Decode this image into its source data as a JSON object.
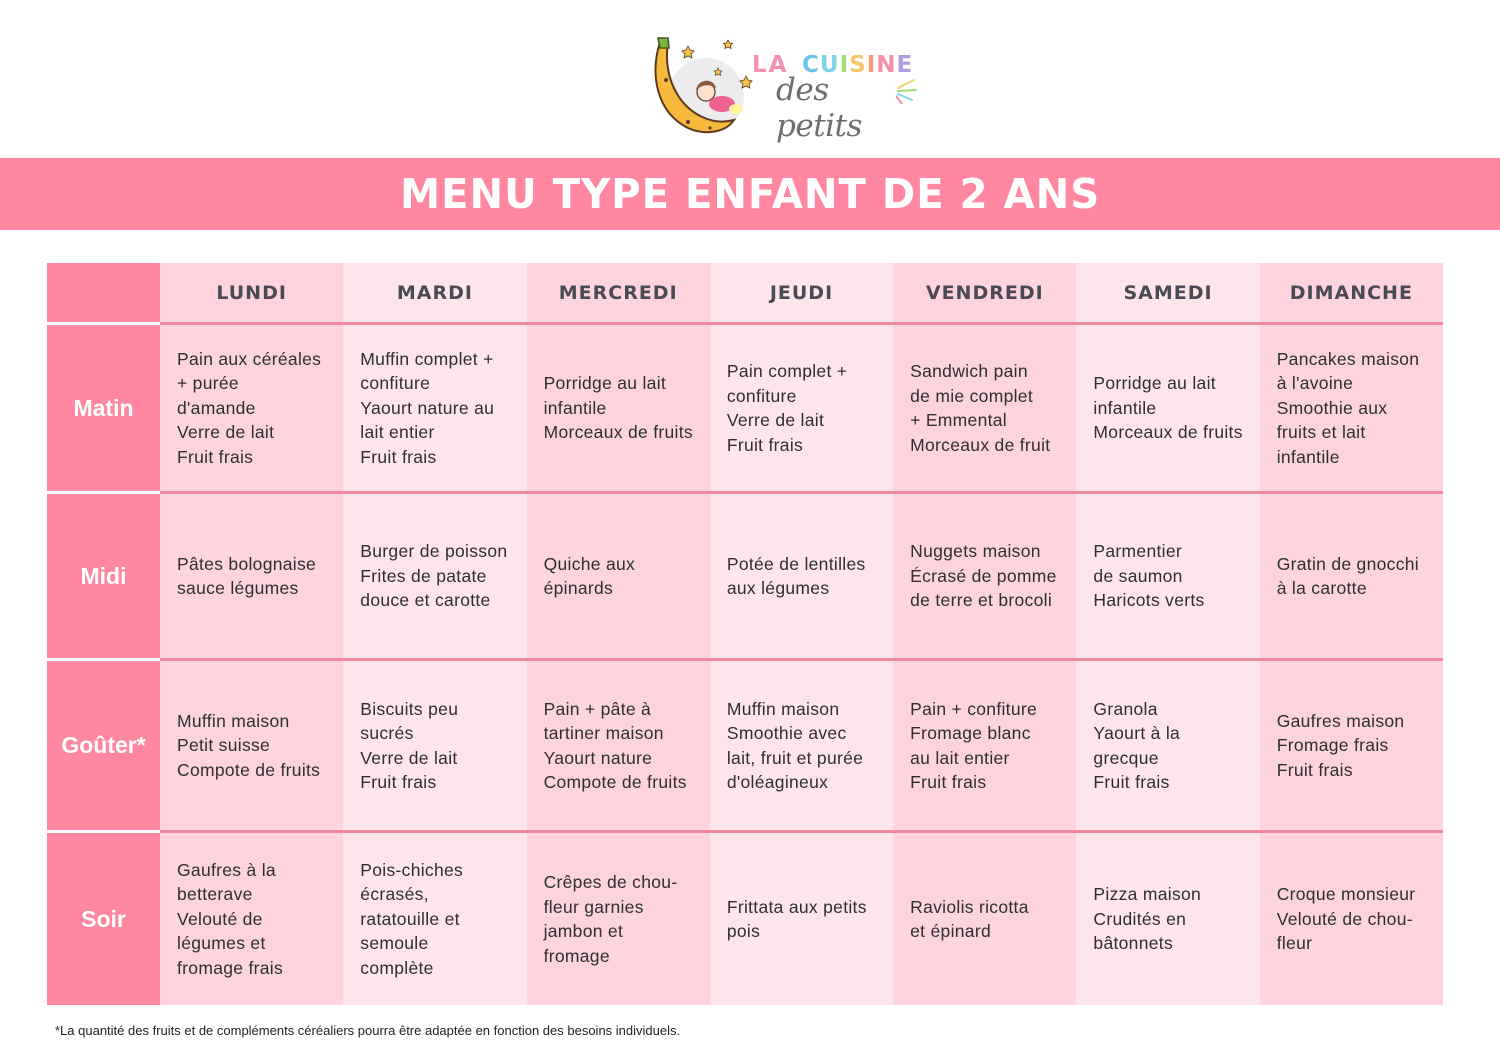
{
  "logo": {
    "la": "LA",
    "cuisine_letters": [
      "C",
      "U",
      "I",
      "S",
      "I",
      "N",
      "E"
    ],
    "cuisine_colors": [
      "#6cc3ea",
      "#7dd3e8",
      "#a5dc7a",
      "#f5c66b",
      "#f49c7a",
      "#f58fa8",
      "#b49ae0"
    ],
    "la_color": "#f590b4",
    "subtitle": "des petits"
  },
  "banner": {
    "title": "MENU TYPE ENFANT DE 2 ANS",
    "color": "#ff87a2"
  },
  "table": {
    "days": [
      "LUNDI",
      "MARDI",
      "MERCREDI",
      "JEUDI",
      "VENDREDI",
      "SAMEDI",
      "DIMANCHE"
    ],
    "meals": [
      {
        "label": "Matin",
        "cells": [
          [
            "Pain aux céréales",
            "+ purée",
            "d'amande",
            "Verre de lait",
            "Fruit frais"
          ],
          [
            "Muffin complet +",
            "confiture",
            "Yaourt nature au",
            "lait entier",
            "Fruit frais"
          ],
          [
            "Porridge au lait",
            "infantile",
            "Morceaux de fruits"
          ],
          [
            "Pain complet +",
            "confiture",
            "Verre de lait",
            "Fruit frais"
          ],
          [
            "Sandwich pain",
            "de mie complet",
            "+ Emmental",
            "Morceaux de fruit"
          ],
          [
            "Porridge au lait",
            "infantile",
            "Morceaux de fruits"
          ],
          [
            "Pancakes maison",
            "à l'avoine",
            "Smoothie aux",
            "fruits et lait",
            "infantile"
          ]
        ]
      },
      {
        "label": "Midi",
        "cells": [
          [
            "Pâtes bolognaise",
            "sauce légumes"
          ],
          [
            "Burger de poisson",
            "Frites de patate",
            "douce et carotte"
          ],
          [
            "Quiche aux",
            "épinards"
          ],
          [
            "Potée de lentilles",
            "aux légumes"
          ],
          [
            "Nuggets maison",
            "Écrasé de pomme",
            "de terre et brocoli"
          ],
          [
            "Parmentier",
            "de saumon",
            "Haricots verts"
          ],
          [
            "Gratin de gnocchi",
            "à la carotte"
          ]
        ]
      },
      {
        "label": "Goûter*",
        "cells": [
          [
            "Muffin maison",
            "Petit suisse",
            "Compote de fruits"
          ],
          [
            "Biscuits peu",
            "sucrés",
            "Verre de lait",
            "Fruit frais"
          ],
          [
            "Pain + pâte à",
            "tartiner maison",
            "Yaourt nature",
            "Compote de fruits"
          ],
          [
            "Muffin maison",
            "Smoothie avec",
            "lait, fruit et purée",
            "d'oléagineux"
          ],
          [
            "Pain + confiture",
            "Fromage blanc",
            "au lait entier",
            "Fruit frais"
          ],
          [
            "Granola",
            "Yaourt à la",
            "grecque",
            "Fruit frais"
          ],
          [
            "Gaufres maison",
            "Fromage frais",
            "Fruit frais"
          ]
        ]
      },
      {
        "label": "Soir",
        "cells": [
          [
            "Gaufres à la",
            "betterave",
            "Velouté de",
            "légumes et",
            "fromage frais"
          ],
          [
            "Pois-chiches",
            "écrasés,",
            "ratatouille et",
            "semoule",
            "complète"
          ],
          [
            "Crêpes de chou-",
            "fleur garnies",
            "jambon et",
            "fromage"
          ],
          [
            "Frittata aux petits",
            "pois"
          ],
          [
            "Raviolis ricotta",
            "et épinard"
          ],
          [
            "Pizza maison",
            "Crudités en",
            "bâtonnets"
          ],
          [
            "Croque monsieur",
            "Velouté de chou-",
            "fleur"
          ]
        ]
      }
    ],
    "colors": {
      "label_bg": "#ff87a2",
      "cell_dark": "#fdd3dd",
      "cell_light": "#fde5eb",
      "separator": "#f0889f",
      "header_text": "#4a4a55"
    }
  },
  "footnote": "*La quantité des fruits et de compléments céréaliers pourra être adaptée en fonction des besoins individuels."
}
